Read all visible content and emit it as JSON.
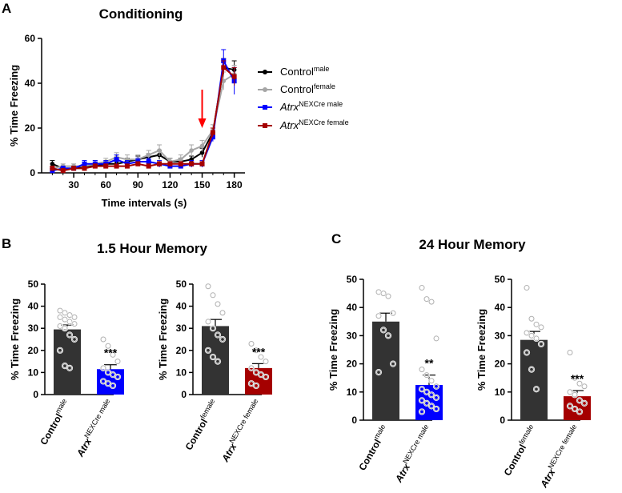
{
  "panel_labels": {
    "a": "A",
    "b": "B",
    "c": "C"
  },
  "legend": {
    "ctrl_male_base": "Control",
    "ctrl_male_sup": "male",
    "ctrl_female_base": "Control",
    "ctrl_female_sup": "female",
    "atrx_male_base": "Atrx",
    "atrx_male_sup": "NEXCre male",
    "atrx_female_base": "Atrx",
    "atrx_female_sup": "NEXCre female"
  },
  "colors": {
    "ctrl_male": "#000000",
    "ctrl_female": "#a6a6a6",
    "atrx_male": "#0000ff",
    "atrx_female": "#a50000",
    "shock_arrow": "#ff0000",
    "bar_control": "#333333"
  },
  "chart_data": [
    {
      "type": "line",
      "title": "Conditioning",
      "xlabel": "Time intervals (s)",
      "ylabel": "% Time Freezing",
      "xlim": [
        0,
        190
      ],
      "ylim": [
        0,
        60
      ],
      "xticks": [
        30,
        60,
        90,
        120,
        150,
        180
      ],
      "yticks": [
        0,
        20,
        40,
        60
      ],
      "x": [
        10,
        20,
        30,
        40,
        50,
        60,
        70,
        80,
        90,
        100,
        110,
        120,
        130,
        140,
        150,
        160,
        170,
        180
      ],
      "series": [
        {
          "name": "Control male",
          "color": "#000000",
          "marker": "circle",
          "values": [
            4,
            2,
            2,
            3,
            3,
            4,
            4,
            5,
            6,
            7,
            8,
            5,
            5,
            6,
            9,
            18,
            47,
            46
          ],
          "errors": [
            1.5,
            1,
            1,
            1,
            1,
            1,
            1,
            1.5,
            1.5,
            1.5,
            2,
            1.5,
            1.5,
            1.5,
            2,
            2,
            4,
            4
          ]
        },
        {
          "name": "Control female",
          "color": "#a6a6a6",
          "marker": "circle",
          "values": [
            2,
            3,
            3,
            3,
            4,
            5,
            7,
            6,
            6,
            8,
            10,
            5,
            6,
            10,
            12,
            19,
            41,
            44
          ],
          "errors": [
            1,
            1,
            1,
            1,
            1.5,
            1.5,
            2,
            2,
            2,
            2,
            2.5,
            1.5,
            2,
            2.5,
            2.5,
            2.5,
            4,
            4
          ]
        },
        {
          "name": "Atrx NEXCre male",
          "color": "#0000ff",
          "marker": "square",
          "values": [
            1,
            2,
            2,
            4,
            4,
            4,
            6,
            4,
            5,
            5,
            4,
            3,
            3,
            4,
            4,
            16,
            50,
            41
          ],
          "errors": [
            1,
            1,
            1,
            1.5,
            1.5,
            1.5,
            2,
            1.5,
            1.5,
            1.5,
            1.5,
            1,
            1,
            1.5,
            1.5,
            2,
            5,
            6
          ]
        },
        {
          "name": "Atrx NEXCre female",
          "color": "#a50000",
          "marker": "square",
          "values": [
            2,
            1,
            2,
            2,
            3,
            3,
            3,
            3,
            4,
            3,
            4,
            4,
            4,
            4,
            4,
            18,
            47,
            43
          ],
          "errors": [
            1,
            1,
            1,
            1,
            1,
            1,
            1,
            1,
            1,
            1,
            1,
            1,
            1,
            1,
            1,
            2,
            3,
            4
          ]
        }
      ],
      "annotations": [
        {
          "type": "arrow",
          "x": 150,
          "color": "#ff0000"
        }
      ]
    },
    {
      "type": "bar",
      "title": "1.5 Hour Memory",
      "panel": "B-left",
      "ylabel": "% Time Freezing",
      "ylim": [
        0,
        50
      ],
      "yticks": [
        0,
        10,
        20,
        30,
        40,
        50
      ],
      "categories": [
        {
          "base": "Control",
          "sup": "male"
        },
        {
          "base": "Atrx",
          "sup": "NEXCre male"
        }
      ],
      "values": [
        29.5,
        11.5
      ],
      "errors": [
        2,
        2
      ],
      "significance": [
        "",
        "***"
      ],
      "bar_colors": [
        "#333333",
        "#0000ff"
      ],
      "points": [
        [
          38,
          37,
          36,
          35,
          35,
          34,
          33,
          32,
          31,
          30,
          27,
          25,
          20,
          13,
          12
        ],
        [
          25,
          22,
          18,
          15,
          12,
          10,
          9,
          8,
          6,
          5,
          4
        ]
      ]
    },
    {
      "type": "bar",
      "title": "",
      "panel": "B-right",
      "ylabel": "% Time Freezing",
      "ylim": [
        0,
        50
      ],
      "yticks": [
        0,
        10,
        20,
        30,
        40,
        50
      ],
      "categories": [
        {
          "base": "Control",
          "sup": "female"
        },
        {
          "base": "Atrx",
          "sup": "NEXCre female"
        }
      ],
      "values": [
        31,
        12
      ],
      "errors": [
        3,
        2
      ],
      "significance": [
        "",
        "***"
      ],
      "bar_colors": [
        "#333333",
        "#a50000"
      ],
      "points": [
        [
          49,
          45,
          41,
          37,
          33,
          30,
          27,
          25,
          20,
          17,
          15
        ],
        [
          23,
          20,
          17,
          15,
          12,
          10,
          9,
          8,
          5,
          4
        ]
      ]
    },
    {
      "type": "bar",
      "title": "24 Hour Memory",
      "panel": "C-left",
      "ylabel": "% Time Freezing",
      "ylim": [
        0,
        50
      ],
      "yticks": [
        0,
        10,
        20,
        30,
        40,
        50
      ],
      "categories": [
        {
          "base": "Control",
          "sup": "male"
        },
        {
          "base": "Atrx",
          "sup": "NEXCre male"
        }
      ],
      "values": [
        35,
        12.5
      ],
      "errors": [
        3,
        3.5
      ],
      "significance": [
        "",
        "**"
      ],
      "bar_colors": [
        "#333333",
        "#0000ff"
      ],
      "points": [
        [
          45.5,
          45,
          44,
          38,
          37,
          32,
          30,
          20,
          17
        ],
        [
          47,
          43,
          42,
          29,
          18,
          16,
          14,
          12,
          11,
          10,
          9,
          8,
          7,
          6,
          5,
          4,
          3
        ]
      ]
    },
    {
      "type": "bar",
      "title": "",
      "panel": "C-right",
      "ylabel": "% Time Freezing",
      "ylim": [
        0,
        50
      ],
      "yticks": [
        0,
        10,
        20,
        30,
        40,
        50
      ],
      "categories": [
        {
          "base": "Control",
          "sup": "female"
        },
        {
          "base": "Atrx",
          "sup": "NEXCre female"
        }
      ],
      "values": [
        28.5,
        8.5
      ],
      "errors": [
        3,
        2
      ],
      "significance": [
        "",
        "***"
      ],
      "bar_colors": [
        "#333333",
        "#a50000"
      ],
      "points": [
        [
          47,
          36,
          34,
          33,
          31,
          30,
          29,
          27,
          24,
          18,
          11
        ],
        [
          24,
          15,
          13,
          12,
          10,
          9,
          7,
          6,
          5,
          4,
          3
        ]
      ]
    }
  ]
}
